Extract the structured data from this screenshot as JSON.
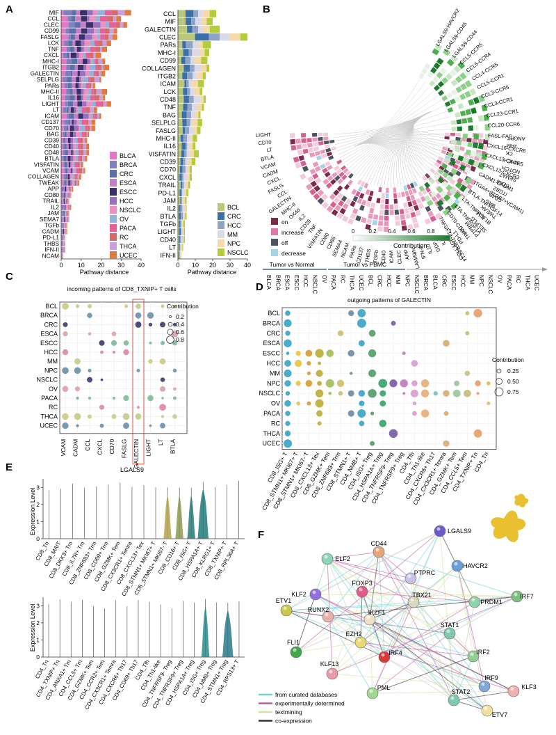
{
  "panels": {
    "A": {
      "label": "A",
      "left": {
        "categories": [
          "MIF",
          "CCL",
          "CLEC",
          "CD99",
          "FASLG",
          "LCK",
          "TNF",
          "CXCL",
          "MHC-I",
          "ITGB2",
          "GALECTIN",
          "SELPLG",
          "PARs",
          "MHC-II",
          "IL16",
          "LIGHT",
          "LT",
          "ICAM",
          "CD137",
          "CD70",
          "BAG",
          "CD39",
          "CD40",
          "CD48",
          "BTLA",
          "VISFATIN",
          "VCAM",
          "COLLAGEN",
          "TWEAK",
          "APP",
          "CD80",
          "TRAIL",
          "IL2",
          "JAM",
          "SEMA7",
          "TGFb",
          "CADM",
          "PD-L1",
          "THBS",
          "IFN-II",
          "NCAM"
        ],
        "totals": [
          35,
          30,
          33,
          28,
          28,
          25,
          23,
          20,
          22,
          24,
          22,
          20,
          17,
          23,
          22,
          25,
          18,
          20,
          17,
          17,
          14,
          13,
          14,
          14,
          13,
          11,
          12,
          10,
          9,
          6,
          5,
          4,
          5,
          4,
          4,
          3,
          3,
          2,
          2,
          2,
          1
        ],
        "legend": [
          "BLCA",
          "BRCA",
          "CRC",
          "ESCA",
          "ESCC",
          "HCC",
          "NSCLC",
          "OV",
          "PACA",
          "RC",
          "THCA",
          "UCEC"
        ],
        "legend_colors": [
          "#e377c2",
          "#7f7fbf",
          "#5b6fa8",
          "#c47fc9",
          "#3b2f6b",
          "#9a6fc0",
          "#f08fbf",
          "#8fb3d9",
          "#e8609a",
          "#d46a6a",
          "#c9a0dc",
          "#e07a3f"
        ],
        "xlabel": "Pathway distance",
        "xticks": [
          0,
          10,
          20,
          30,
          40
        ],
        "xlim": [
          0,
          40
        ]
      },
      "right": {
        "categories": [
          "CCL",
          "MIF",
          "GALECTIN",
          "CLEC",
          "PARs",
          "MHC-I",
          "CD99",
          "COLLAGEN",
          "ITGB2",
          "ICAM",
          "LCK",
          "CD48",
          "TNF",
          "BAG",
          "SELPLG",
          "FASLG",
          "MHC-II",
          "IL16",
          "VISFATIN",
          "CD39",
          "CD70",
          "CXCL",
          "TRAIL",
          "PD-L1",
          "JAM",
          "IL2",
          "BTLA",
          "TGFb",
          "LIGHT",
          "CD40",
          "LT",
          "IFN-II"
        ],
        "totals": [
          22,
          20,
          24,
          40,
          19,
          18,
          17,
          18,
          16,
          15,
          14,
          16,
          15,
          13,
          14,
          13,
          11,
          10,
          12,
          10,
          8,
          8,
          7,
          6,
          5,
          5,
          5,
          4,
          4,
          4,
          3,
          2
        ],
        "legend": [
          "BCL",
          "CRC",
          "HCC",
          "MM",
          "NPC",
          "NSCLC"
        ],
        "legend_colors": [
          "#b8c77a",
          "#3b6fa8",
          "#8fa3c7",
          "#d9d9e8",
          "#f5d9a8",
          "#b5cc3a"
        ],
        "xlabel": "Pathway distance",
        "xticks": [
          0,
          10,
          20,
          30,
          40
        ],
        "xlim": [
          0,
          40
        ]
      }
    },
    "B": {
      "label": "B",
      "ligands": [
        "ANGPT",
        "JAM",
        "CK",
        "MHC-I",
        "NOTCH",
        "SEMA7",
        "CD46",
        "ITGB2",
        "CD48",
        "BAG",
        "TWEAK",
        "IL16",
        "SELPLG",
        "PTPRM",
        "TRAIL",
        "PD-L1",
        "COLLAGEN",
        "IL1",
        "GDF",
        "IL10",
        "IFN-II",
        "LAMININ",
        "APP",
        "CLEC",
        "ICAM",
        "CD40",
        "TGFb",
        "THBS",
        "CD137",
        "PARs",
        "NCAM",
        "SEMA4",
        "CD86",
        "CD80",
        "VISFATIN",
        "TNF",
        "CD39",
        "IL2",
        "OX40",
        "MHC-II",
        "GALECTIN",
        "CCL",
        "FASLG",
        "CXCL",
        "CADM",
        "VCAM",
        "BTLA",
        "LT",
        "CD70",
        "LIGHT"
      ],
      "pairs": [
        "LGALS9-HAVCR2",
        "LGALS9-CD45",
        "LGALS9-CD44",
        "CCL5-CCR5",
        "CCL5-CCR4",
        "CCL4-CCR5",
        "CCL5-CCR1",
        "CCL3-CCR5",
        "CCL3-CCR1",
        "CCL23-CCR1",
        "CCL20-CCR6",
        "FASL-FAS",
        "CXCL16-CXCR6",
        "CXCL13-CXCR5",
        "CXCL13-CXCR3",
        "CADM1-CADM1",
        "ITGA4+(ITGB7+VCAM1)",
        "BTLA-TNFRSF14",
        "LTA-TNFRSF1B",
        "LTA-TNFRSF1A",
        "CD70-CD27",
        "TNFSF14-TNFRSF14"
      ],
      "legend": [
        {
          "label": "on",
          "color": "#7a2a4a"
        },
        {
          "label": "increase",
          "color": "#e07aa8"
        },
        {
          "label": "off",
          "color": "#4a5560"
        },
        {
          "label": "decrease",
          "color": "#a7d3e8"
        }
      ],
      "colorbar_label": "Contribution",
      "colorbar_ticks": [
        "0",
        "0.2",
        "0.4",
        "0.6",
        "0.8",
        "1"
      ],
      "group_tumor_normal": "Tumor vs Normal",
      "group_tumor_pbmc": "Tumor vs PBMC",
      "conditions": [
        "BLCA",
        "BRCA",
        "ESCA",
        "ESCC",
        "HCC",
        "NSCLC",
        "OV",
        "PACA",
        "RC",
        "THCA",
        "UCEC",
        "BCL",
        "CRC",
        "HCC",
        "MM",
        "NPC",
        "NSCLC",
        "BRCA",
        "BLCA",
        "CRC",
        "ESCC",
        "HCC",
        "MM",
        "NPC",
        "NSCLC",
        "OV",
        "PACA",
        "RC",
        "THCA",
        "UCEC"
      ]
    },
    "C": {
      "label": "C",
      "title": "incoming patterns of CD8_TXNIP+ T cells",
      "rows": [
        "BCL",
        "BRCA",
        "CRC",
        "ESCA",
        "ESCC",
        "HCC",
        "MM",
        "NPC",
        "NSCLC",
        "OV",
        "PACA",
        "RC",
        "THCA",
        "UCEC"
      ],
      "cols": [
        "VCAM",
        "CADM",
        "CCL",
        "CXCL",
        "CD70",
        "FASLG",
        "GALECTIN",
        "LIGHT",
        "LT",
        "BTLA"
      ],
      "highlight_col": "GALECTIN",
      "legend_title": "Contribution",
      "legend_sizes": [
        "0.2",
        "0.4",
        "0.6",
        "0.8"
      ]
    },
    "D": {
      "label": "D",
      "title": "outgoing patterns of GALECTIN",
      "rows": [
        "BCL",
        "BRCA",
        "CRC",
        "ESCA",
        "ESCC",
        "HCC",
        "MM",
        "NPC",
        "NSCLC",
        "OV",
        "PACA",
        "RC",
        "THCA",
        "UCEC"
      ],
      "cols": [
        "CD8_ISG+ T",
        "CD8_STMN1+ MKI67+ T",
        "CD8_STMN1+ MKI67- T",
        "CD8_CXCL13+ Tex",
        "CD8_GZMK+ Tem",
        "CD8_ZNF683+ Trm",
        "CD8_STMN1+ T",
        "CD4_NMB+ T",
        "CD4_ISG+ Treg",
        "CD4_HSPA1A+ Treg",
        "CD4_TNFRSF9- Treg",
        "CD4_TNFRSF9+ Treg",
        "CD4_Tfh",
        "CD4_Th1-like",
        "CD4_CXCR6+ Th17",
        "CD4_CX3CR1+ Temra",
        "CD4_GZMK+ Tem",
        "CD4_CCL5+ Tem",
        "CD4_TXNIP+ Tn",
        "CD4_Tn"
      ],
      "legend_title": "Contribution",
      "legend_sizes": [
        "0.25",
        "0.50",
        "0.75"
      ]
    },
    "E": {
      "label": "E",
      "title": "LGALS9",
      "ylabel": "Expression Level",
      "yticks": [
        "0",
        "1",
        "2",
        "3"
      ],
      "top_cells": [
        "CD8_Tn",
        "CD8_MAIT",
        "CD8_DKK3+ Tm",
        "CD8_IL7R+ Tm",
        "CD8_ZNF683+ Trm",
        "CD8_CD69+ Trm",
        "CD8_GZMK+ Tem",
        "CD8_CX3CR1+ Temra",
        "CD8_CXCL13+ Tex",
        "CD8_STMN1+ MKI67+ T",
        "CD8_STMN1+ MKI67- T",
        "CD8_CD16+ T",
        "CD8_ISG+ T",
        "CD8_HSPA1A+ T",
        "CD8_KLRG1+ T",
        "CD8_TXNIP+ T",
        "CD8_RPL36A+ T"
      ],
      "bottom_cells": [
        "CD4_Tn",
        "CD4_TXNIP+ Tn",
        "CD4_ANXA1+ Tm",
        "CD4_CCL5+ Tm",
        "CD4_GZMK+ Tem",
        "CD4_CCR2+ Tem",
        "CD4_CX3CR1+ Temra",
        "CD4_CXCR6+ Th17",
        "CD4_CD69+ Th17",
        "CD4_Tfh",
        "CD4_Th1-like",
        "CD4_TNFRSF9- Treg",
        "CD4_TNFRSF9+ Treg",
        "CD4_HSPA1A+ Treg",
        "CD4_ISG+ Treg",
        "CD4_NMB+ Treg",
        "CD4_STMN1+ Treg",
        "CD4_RPS13+ T"
      ]
    },
    "F": {
      "label": "F",
      "nodes": [
        {
          "name": "CD44",
          "color": "#e8a57a"
        },
        {
          "name": "LGALS9",
          "color": "#6a5acd"
        },
        {
          "name": "ELF2",
          "color": "#8fd3b8"
        },
        {
          "name": "PTPRC",
          "color": "#c9c0e8"
        },
        {
          "name": "HAVCR2",
          "color": "#6a9fd8"
        },
        {
          "name": "KLF2",
          "color": "#9370db"
        },
        {
          "name": "FOXP3",
          "color": "#e05a8a"
        },
        {
          "name": "ETV1",
          "color": "#c9c94a"
        },
        {
          "name": "TBX21",
          "color": "#d8d8c0"
        },
        {
          "name": "PRDM1",
          "color": "#8fd3a8"
        },
        {
          "name": "IRF7",
          "color": "#7fbf7f"
        },
        {
          "name": "RUNX2",
          "color": "#e8b0a8"
        },
        {
          "name": "IKZF1",
          "color": "#f0e0c8"
        },
        {
          "name": "STAT1",
          "color": "#7fc9b0"
        },
        {
          "name": "EZH2",
          "color": "#e8d870"
        },
        {
          "name": "FLI1",
          "color": "#3fa84a"
        },
        {
          "name": "IRF4",
          "color": "#d83a3a"
        },
        {
          "name": "IRF2",
          "color": "#8fcf8f"
        },
        {
          "name": "KLF13",
          "color": "#e89aaa"
        },
        {
          "name": "IRF9",
          "color": "#7fa8d8"
        },
        {
          "name": "KLF3",
          "color": "#f0b0b0"
        },
        {
          "name": "PML",
          "color": "#9fd88f"
        },
        {
          "name": "STAT2",
          "color": "#7fc9b0"
        },
        {
          "name": "ETV7",
          "color": "#f0e0a0"
        }
      ],
      "legend": [
        {
          "label": "from curated databases",
          "color": "#6fd0d8"
        },
        {
          "label": "experimentally determined",
          "color": "#c05aa0"
        },
        {
          "label": "textmining",
          "color": "#d8e0a0"
        },
        {
          "label": "co-expression",
          "color": "#333333"
        }
      ]
    }
  },
  "chart_data": [
    {
      "type": "bar",
      "panel": "A-left",
      "categories": [
        "MIF",
        "CCL",
        "CLEC",
        "CD99",
        "FASLG",
        "LCK",
        "TNF",
        "CXCL",
        "MHC-I",
        "ITGB2",
        "GALECTIN",
        "SELPLG",
        "PARs",
        "MHC-II",
        "IL16",
        "LIGHT",
        "LT",
        "ICAM",
        "CD137",
        "CD70",
        "BAG",
        "CD39",
        "CD40",
        "CD48",
        "BTLA",
        "VISFATIN",
        "VCAM",
        "COLLAGEN",
        "TWEAK",
        "APP",
        "CD80",
        "TRAIL",
        "IL2",
        "JAM",
        "SEMA7",
        "TGFb",
        "CADM",
        "PD-L1",
        "THBS",
        "IFN-II",
        "NCAM"
      ],
      "values": [
        35,
        30,
        33,
        28,
        28,
        25,
        23,
        20,
        22,
        24,
        22,
        20,
        17,
        23,
        22,
        25,
        18,
        20,
        17,
        17,
        14,
        13,
        14,
        14,
        13,
        11,
        12,
        10,
        9,
        6,
        5,
        4,
        5,
        4,
        4,
        3,
        3,
        2,
        2,
        2,
        1
      ],
      "xlabel": "Pathway distance",
      "xlim": [
        0,
        40
      ]
    },
    {
      "type": "bar",
      "panel": "A-right",
      "categories": [
        "CCL",
        "MIF",
        "GALECTIN",
        "CLEC",
        "PARs",
        "MHC-I",
        "CD99",
        "COLLAGEN",
        "ITGB2",
        "ICAM",
        "LCK",
        "CD48",
        "TNF",
        "BAG",
        "SELPLG",
        "FASLG",
        "MHC-II",
        "IL16",
        "VISFATIN",
        "CD39",
        "CD70",
        "CXCL",
        "TRAIL",
        "PD-L1",
        "JAM",
        "IL2",
        "BTLA",
        "TGFb",
        "LIGHT",
        "CD40",
        "LT",
        "IFN-II"
      ],
      "values": [
        22,
        20,
        24,
        40,
        19,
        18,
        17,
        18,
        16,
        15,
        14,
        16,
        15,
        13,
        14,
        13,
        11,
        10,
        12,
        10,
        8,
        8,
        7,
        6,
        5,
        5,
        5,
        4,
        4,
        4,
        3,
        2
      ],
      "xlabel": "Pathway distance",
      "xlim": [
        0,
        40
      ]
    },
    {
      "type": "scatter",
      "panel": "C",
      "title": "incoming patterns of CD8_TXNIP+ T cells"
    },
    {
      "type": "scatter",
      "panel": "D",
      "title": "outgoing patterns of GALECTIN"
    },
    {
      "type": "violin",
      "panel": "E",
      "title": "LGALS9",
      "ylabel": "Expression Level",
      "ylim": [
        0,
        3.5
      ]
    }
  ]
}
